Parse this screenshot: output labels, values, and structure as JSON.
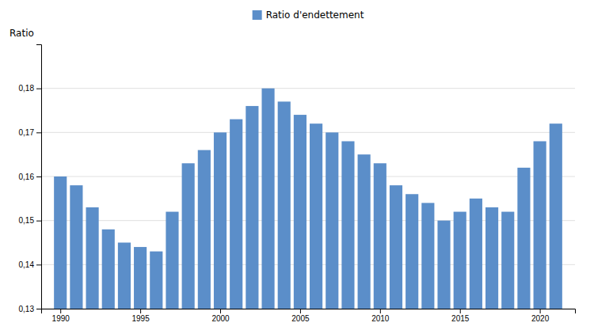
{
  "chart_data": {
    "type": "bar",
    "x": [
      1990,
      1991,
      1992,
      1993,
      1994,
      1995,
      1996,
      1997,
      1998,
      1999,
      2000,
      2001,
      2002,
      2003,
      2004,
      2005,
      2006,
      2007,
      2008,
      2009,
      2010,
      2011,
      2012,
      2013,
      2014,
      2015,
      2016,
      2017,
      2018,
      2019,
      2020,
      2021
    ],
    "series": [
      {
        "name": "Ratio d'endettement",
        "color": "#5B8EC9",
        "values": [
          0.16,
          0.158,
          0.153,
          0.148,
          0.145,
          0.144,
          0.143,
          0.152,
          0.163,
          0.166,
          0.17,
          0.173,
          0.176,
          0.18,
          0.177,
          0.174,
          0.172,
          0.17,
          0.168,
          0.165,
          0.163,
          0.158,
          0.156,
          0.154,
          0.15,
          0.152,
          0.155,
          0.153,
          0.152,
          0.162,
          0.168,
          0.172
        ]
      }
    ],
    "ylabel": "Ratio",
    "xlim": [
      1988.8,
      2022.2
    ],
    "xticks": [
      1990,
      1995,
      2000,
      2005,
      2010,
      2015,
      2020
    ],
    "ylim": [
      0.13,
      0.19
    ],
    "yticks": [
      {
        "value": 0.13,
        "label": "0,13"
      },
      {
        "value": 0.14,
        "label": "0,14"
      },
      {
        "value": 0.15,
        "label": "0,15"
      },
      {
        "value": 0.16,
        "label": "0,16"
      },
      {
        "value": 0.17,
        "label": "0,17"
      },
      {
        "value": 0.18,
        "label": "0,18"
      }
    ],
    "grid": true,
    "legend": "top"
  }
}
